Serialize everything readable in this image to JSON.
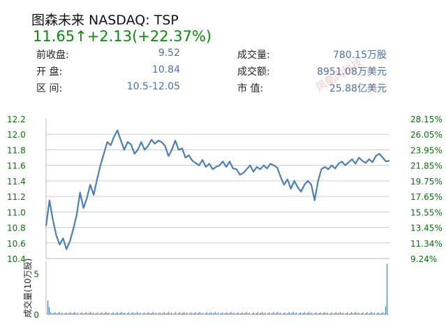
{
  "header": {
    "title": "图森未来 NASDAQ: TSP",
    "price_line": "11.65↑+2.13(+22.37%)"
  },
  "stats": {
    "prev_close_label": "前收盘:",
    "prev_close_value": "9.52",
    "open_label": "开  盘:",
    "open_value": "10.84",
    "range_label": "区  间:",
    "range_value": "10.5-12.05",
    "volume_label": "成交量:",
    "volume_value": "780.15万股",
    "turnover_label": "成交额:",
    "turnover_value": "8951.08万美元",
    "mcap_label": "市  值:",
    "mcap_value": "25.88亿美元"
  },
  "watermark": "凤凰网科技",
  "colors": {
    "line": "#4a7fb5",
    "up": "#0a8a0a",
    "volume": "#4a7fb5"
  },
  "chart_data": {
    "type": "line",
    "y_ticks": [
      "12.2",
      "12.0",
      "11.8",
      "11.6",
      "11.4",
      "11.2",
      "11.0",
      "10.8",
      "10.6",
      "10.4"
    ],
    "ylim": [
      10.4,
      12.2
    ],
    "pct_ticks": [
      "28.15%",
      "26.05%",
      "23.95%",
      "21.85%",
      "19.75%",
      "17.65%",
      "15.55%",
      "13.45%",
      "11.34%",
      "9.24%"
    ],
    "series": [
      {
        "values": [
          10.82,
          11.15,
          10.9,
          10.7,
          10.58,
          10.66,
          10.52,
          10.62,
          10.78,
          10.96,
          11.25,
          11.05,
          11.18,
          11.35,
          11.22,
          11.42,
          11.6,
          11.75,
          11.9,
          11.86,
          11.97,
          12.05,
          11.92,
          11.8,
          11.9,
          11.87,
          11.75,
          11.8,
          11.9,
          11.8,
          11.85,
          11.93,
          11.88,
          11.92,
          11.9,
          11.85,
          11.72,
          11.8,
          11.92,
          11.8,
          11.82,
          11.7,
          11.73,
          11.66,
          11.63,
          11.6,
          11.67,
          11.58,
          11.62,
          11.55,
          11.58,
          11.6,
          11.65,
          11.58,
          11.65,
          11.56,
          11.55,
          11.48,
          11.5,
          11.55,
          11.6,
          11.52,
          11.58,
          11.55,
          11.6,
          11.56,
          11.62,
          11.6,
          11.57,
          11.45,
          11.35,
          11.42,
          11.3,
          11.4,
          11.32,
          11.26,
          11.35,
          11.4,
          11.35,
          11.15,
          11.4,
          11.55,
          11.58,
          11.55,
          11.6,
          11.56,
          11.62,
          11.65,
          11.6,
          11.64,
          11.68,
          11.62,
          11.7,
          11.66,
          11.63,
          11.68,
          11.64,
          11.72,
          11.75,
          11.7,
          11.65,
          11.66
        ]
      }
    ],
    "volume": {
      "ylabel": "成交量(10万股)",
      "y_ticks": [
        "5",
        "0"
      ],
      "ylim": [
        0,
        6.5
      ]
    }
  }
}
